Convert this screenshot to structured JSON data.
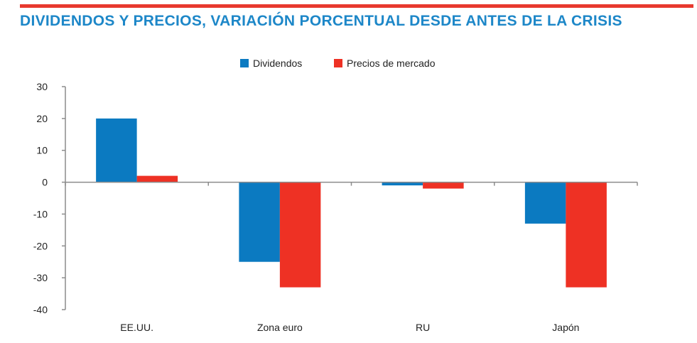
{
  "page": {
    "title": "DIVIDENDOS Y PRECIOS, VARIACIÓN PORCENTUAL DESDE ANTES DE LA CRISIS",
    "accent_color": "#e8392e",
    "title_color": "#1d87c8"
  },
  "chart_data": {
    "type": "bar",
    "title": "DIVIDENDOS Y PRECIOS, VARIACIÓN PORCENTUAL DESDE ANTES DE LA CRISIS",
    "categories": [
      "EE.UU.",
      "Zona euro",
      "RU",
      "Japón"
    ],
    "series": [
      {
        "name": "Dividendos",
        "color": "#0b7ac1",
        "values": [
          20,
          -25,
          -1,
          -13
        ]
      },
      {
        "name": "Precios de mercado",
        "color": "#ee3124",
        "values": [
          2,
          -33,
          -2,
          -33
        ]
      }
    ],
    "ylim": [
      -40,
      30
    ],
    "yticks": [
      30,
      20,
      10,
      0,
      -10,
      -20,
      -30,
      -40
    ],
    "xlabel": "",
    "ylabel": "",
    "grid": false,
    "legend_position": "top-center"
  }
}
